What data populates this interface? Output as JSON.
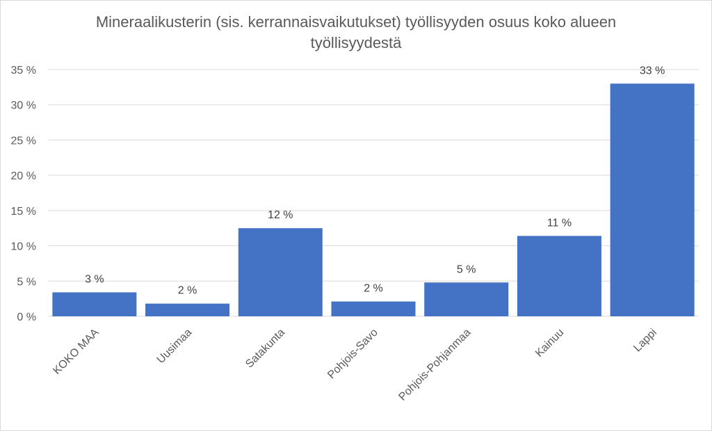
{
  "chart_data": {
    "type": "bar",
    "title_line1": "Mineraalikusterin (sis. kerrannaisvaikutukset) työllisyyden osuus koko alueen",
    "title_line2": "työllisyydestä",
    "categories": [
      "KOKO MAA",
      "Uusimaa",
      "Satakunta",
      "Pohjois-Savo",
      "Pohjois-Pohjanmaa",
      "Kainuu",
      "Lappi"
    ],
    "values": [
      3.4,
      1.8,
      12.5,
      2.1,
      4.8,
      11.4,
      33.0
    ],
    "data_labels": [
      "3 %",
      "2 %",
      "12 %",
      "2 %",
      "5 %",
      "11 %",
      "33 %"
    ],
    "ylim": [
      0,
      35
    ],
    "yticks": [
      0,
      5,
      10,
      15,
      20,
      25,
      30,
      35
    ],
    "ytick_labels": [
      "0 %",
      "5 %",
      "10 %",
      "15 %",
      "20 %",
      "25 %",
      "30 %",
      "35 %"
    ],
    "bar_color": "#4472c4",
    "grid": true,
    "legend": "none"
  }
}
